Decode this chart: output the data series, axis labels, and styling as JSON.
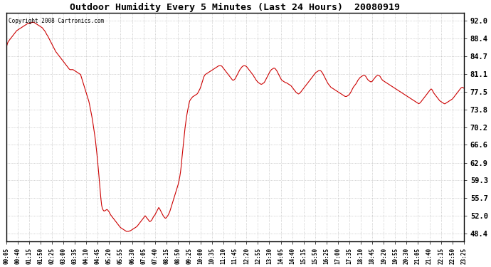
{
  "title": "Outdoor Humidity Every 5 Minutes (Last 24 Hours)  20080919",
  "copyright": "Copyright 2008 Cartronics.com",
  "line_color": "#cc0000",
  "bg_color": "#ffffff",
  "grid_color": "#aaaaaa",
  "yticks": [
    48.4,
    52.0,
    55.7,
    59.3,
    62.9,
    66.6,
    70.2,
    73.8,
    77.5,
    81.1,
    84.7,
    88.4,
    92.0
  ],
  "ylim": [
    46.8,
    93.6
  ],
  "xtick_labels": [
    "00:05",
    "00:40",
    "01:15",
    "01:50",
    "02:25",
    "03:00",
    "03:35",
    "04:10",
    "04:45",
    "05:20",
    "05:55",
    "06:30",
    "07:05",
    "07:40",
    "08:15",
    "08:50",
    "09:25",
    "10:00",
    "10:35",
    "11:10",
    "11:45",
    "12:20",
    "12:55",
    "13:30",
    "14:05",
    "14:40",
    "15:15",
    "15:50",
    "16:25",
    "17:00",
    "17:35",
    "18:10",
    "18:45",
    "19:20",
    "19:55",
    "20:30",
    "21:05",
    "21:40",
    "22:15",
    "22:50",
    "23:25"
  ],
  "humidity_values": [
    86.5,
    87.0,
    87.5,
    87.8,
    88.0,
    88.2,
    88.4,
    88.6,
    88.8,
    89.0,
    89.2,
    89.4,
    89.6,
    89.8,
    90.0,
    90.1,
    90.2,
    90.3,
    90.4,
    90.5,
    90.6,
    90.7,
    90.8,
    90.9,
    91.0,
    91.1,
    91.2,
    91.3,
    91.4,
    91.5,
    91.5,
    91.5,
    91.5,
    91.6,
    91.7,
    91.7,
    91.7,
    91.7,
    91.6,
    91.5,
    91.4,
    91.3,
    91.2,
    91.1,
    91.0,
    90.9,
    90.8,
    90.7,
    90.6,
    90.4,
    90.2,
    90.0,
    89.8,
    89.5,
    89.2,
    89.0,
    88.7,
    88.4,
    88.1,
    87.8,
    87.5,
    87.2,
    86.9,
    86.6,
    86.3,
    86.0,
    85.7,
    85.5,
    85.3,
    85.1,
    84.9,
    84.7,
    84.5,
    84.3,
    84.1,
    83.9,
    83.7,
    83.5,
    83.3,
    83.1,
    82.9,
    82.7,
    82.5,
    82.3,
    82.1,
    82.0,
    82.0,
    82.0,
    82.0,
    82.0,
    81.9,
    81.8,
    81.7,
    81.6,
    81.5,
    81.4,
    81.3,
    81.2,
    81.1,
    81.0,
    80.5,
    80.0,
    79.5,
    79.0,
    78.5,
    78.0,
    77.5,
    77.0,
    76.5,
    76.0,
    75.5,
    74.8,
    74.0,
    73.2,
    72.4,
    71.5,
    70.5,
    69.5,
    68.4,
    67.2,
    65.8,
    64.3,
    62.7,
    61.0,
    59.2,
    57.4,
    55.6,
    54.2,
    53.5,
    53.2,
    53.0,
    53.0,
    53.1,
    53.2,
    53.3,
    53.2,
    53.0,
    52.8,
    52.5,
    52.2,
    52.0,
    51.8,
    51.6,
    51.4,
    51.2,
    51.0,
    50.8,
    50.6,
    50.4,
    50.2,
    50.0,
    49.8,
    49.6,
    49.5,
    49.4,
    49.3,
    49.2,
    49.1,
    49.0,
    48.9,
    48.8,
    48.8,
    48.8,
    48.8,
    48.9,
    48.9,
    49.0,
    49.1,
    49.2,
    49.3,
    49.4,
    49.5,
    49.6,
    49.7,
    49.8,
    50.0,
    50.2,
    50.4,
    50.6,
    50.8,
    51.0,
    51.2,
    51.4,
    51.6,
    51.8,
    52.0,
    51.8,
    51.6,
    51.4,
    51.2,
    51.0,
    50.8,
    50.9,
    51.0,
    51.2,
    51.5,
    51.8,
    52.0,
    52.2,
    52.5,
    52.8,
    53.1,
    53.4,
    53.7,
    53.5,
    53.2,
    52.9,
    52.6,
    52.3,
    52.0,
    51.8,
    51.6,
    51.5,
    51.6,
    51.8,
    52.0,
    52.3,
    52.6,
    53.0,
    53.5,
    54.0,
    54.5,
    55.0,
    55.5,
    56.0,
    56.5,
    57.0,
    57.5,
    58.0,
    58.5,
    59.2,
    60.0,
    61.0,
    62.3,
    64.0,
    65.5,
    67.0,
    68.5,
    70.0,
    71.2,
    72.3,
    73.2,
    74.0,
    74.8,
    75.5,
    75.8,
    76.0,
    76.2,
    76.4,
    76.5,
    76.6,
    76.7,
    76.8,
    76.9,
    77.0,
    77.2,
    77.5,
    77.8,
    78.1,
    78.5,
    79.0,
    79.5,
    80.0,
    80.5,
    80.8,
    81.0,
    81.1,
    81.2,
    81.3,
    81.4,
    81.5,
    81.6,
    81.7,
    81.8,
    81.9,
    82.0,
    82.1,
    82.2,
    82.3,
    82.4,
    82.5,
    82.6,
    82.7,
    82.8,
    82.8,
    82.8,
    82.8,
    82.7,
    82.5,
    82.3,
    82.1,
    81.9,
    81.7,
    81.5,
    81.3,
    81.1,
    80.9,
    80.7,
    80.5,
    80.3,
    80.1,
    79.9,
    79.8,
    79.9,
    80.0,
    80.2,
    80.5,
    80.8,
    81.1,
    81.4,
    81.7,
    82.0,
    82.2,
    82.4,
    82.6,
    82.7,
    82.8,
    82.8,
    82.8,
    82.7,
    82.6,
    82.4,
    82.2,
    82.0,
    81.8,
    81.6,
    81.4,
    81.2,
    81.0,
    80.8,
    80.5,
    80.3,
    80.0,
    79.8,
    79.6,
    79.4,
    79.3,
    79.2,
    79.1,
    79.0,
    79.0,
    79.1,
    79.2,
    79.3,
    79.5,
    79.8,
    80.1,
    80.4,
    80.7,
    81.0,
    81.3,
    81.6,
    81.8,
    82.0,
    82.1,
    82.2,
    82.3,
    82.3,
    82.2,
    82.0,
    81.8,
    81.5,
    81.2,
    80.9,
    80.6,
    80.3,
    80.0,
    79.8,
    79.7,
    79.6,
    79.5,
    79.4,
    79.3,
    79.3,
    79.2,
    79.1,
    79.0,
    78.9,
    78.8,
    78.7,
    78.5,
    78.3,
    78.1,
    77.9,
    77.7,
    77.5,
    77.3,
    77.2,
    77.1,
    77.0,
    77.1,
    77.2,
    77.4,
    77.6,
    77.8,
    78.0,
    78.2,
    78.4,
    78.6,
    78.8,
    79.0,
    79.2,
    79.4,
    79.6,
    79.8,
    80.0,
    80.2,
    80.4,
    80.6,
    80.8,
    81.0,
    81.2,
    81.4,
    81.5,
    81.6,
    81.7,
    81.8,
    81.8,
    81.8,
    81.7,
    81.5,
    81.3,
    81.0,
    80.7,
    80.4,
    80.1,
    79.8,
    79.5,
    79.2,
    79.0,
    78.8,
    78.6,
    78.4,
    78.3,
    78.2,
    78.1,
    78.0,
    77.9,
    77.8,
    77.7,
    77.6,
    77.5,
    77.4,
    77.3,
    77.2,
    77.1,
    77.0,
    76.9,
    76.8,
    76.7,
    76.6,
    76.5,
    76.5,
    76.5,
    76.6,
    76.7,
    76.8,
    77.0,
    77.2,
    77.5,
    77.8,
    78.1,
    78.4,
    78.6,
    78.8,
    79.0,
    79.2,
    79.5,
    79.8,
    80.0,
    80.2,
    80.4,
    80.5,
    80.6,
    80.7,
    80.8,
    80.8,
    80.8,
    80.7,
    80.5,
    80.2,
    80.0,
    79.8,
    79.7,
    79.6,
    79.5,
    79.5,
    79.6,
    79.8,
    80.0,
    80.2,
    80.4,
    80.6,
    80.7,
    80.8,
    80.8,
    80.8,
    80.7,
    80.5,
    80.2,
    80.0,
    79.8,
    79.7,
    79.6,
    79.5,
    79.4,
    79.3,
    79.2,
    79.1,
    79.0,
    78.9,
    78.8,
    78.7,
    78.6,
    78.5,
    78.4,
    78.3,
    78.2,
    78.1,
    78.0,
    77.9,
    77.8,
    77.7,
    77.6,
    77.5,
    77.4,
    77.3,
    77.2,
    77.1,
    77.0,
    76.9,
    76.8,
    76.7,
    76.6,
    76.5,
    76.4,
    76.3,
    76.2,
    76.1,
    76.0,
    75.9,
    75.8,
    75.7,
    75.6,
    75.5,
    75.4,
    75.3,
    75.2,
    75.1,
    75.0,
    75.1,
    75.2,
    75.4,
    75.6,
    75.8,
    76.0,
    76.2,
    76.4,
    76.6,
    76.8,
    77.0,
    77.2,
    77.4,
    77.6,
    77.8,
    78.0,
    78.0,
    77.8,
    77.5,
    77.2,
    77.0,
    76.8,
    76.6,
    76.4,
    76.2,
    76.0,
    75.8,
    75.6,
    75.5,
    75.4,
    75.3,
    75.2,
    75.1,
    75.0,
    75.0,
    75.1,
    75.2,
    75.3,
    75.4,
    75.5,
    75.6,
    75.7,
    75.8,
    75.9,
    76.0,
    76.2,
    76.4,
    76.6,
    76.8,
    77.0,
    77.2,
    77.4,
    77.6,
    77.8,
    78.0,
    78.2,
    78.3,
    78.4,
    78.3,
    78.2
  ]
}
